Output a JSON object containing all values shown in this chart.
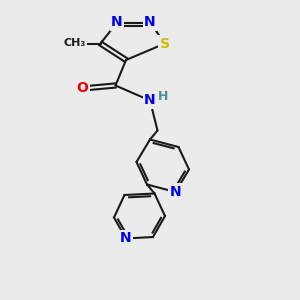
{
  "bg_color": "#ebebeb",
  "bond_color": "#1a1a1a",
  "bond_width": 1.5,
  "dbl_sep": 0.07,
  "atom_colors": {
    "N": "#0000ee",
    "O": "#ee0000",
    "S": "#ccbb00",
    "H": "#4a9090",
    "C": "#1a1a1a"
  },
  "font_size": 9,
  "fig_size": [
    3.0,
    3.0
  ],
  "dpi": 100,
  "xlim": [
    0,
    10
  ],
  "ylim": [
    0,
    10
  ]
}
